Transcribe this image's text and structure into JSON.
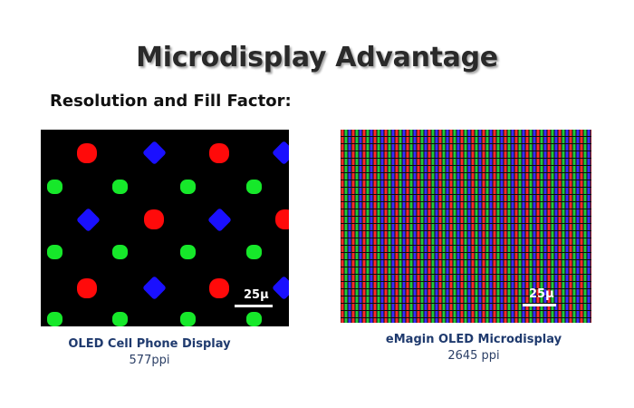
{
  "slide": {
    "title": "Microdisplay Advantage",
    "subtitle": "Resolution and Fill Factor:"
  },
  "left_display": {
    "scale_label": "25µ",
    "name": "OLED Cell Phone Display",
    "ppi": "577ppi",
    "colors": {
      "red": "#ff0a0a",
      "green": "#16e82a",
      "blue": "#1a10ff"
    }
  },
  "right_display": {
    "scale_label": "25µ",
    "name": "eMagin OLED Microdisplay",
    "ppi": "2645 ppi",
    "colors": {
      "red": "#ff2a2a",
      "green": "#22c83a",
      "blue": "#3a2cff"
    }
  },
  "colors": {
    "title": "#2a2a2a",
    "caption_name": "#1f3a6e",
    "background": "#ffffff"
  }
}
